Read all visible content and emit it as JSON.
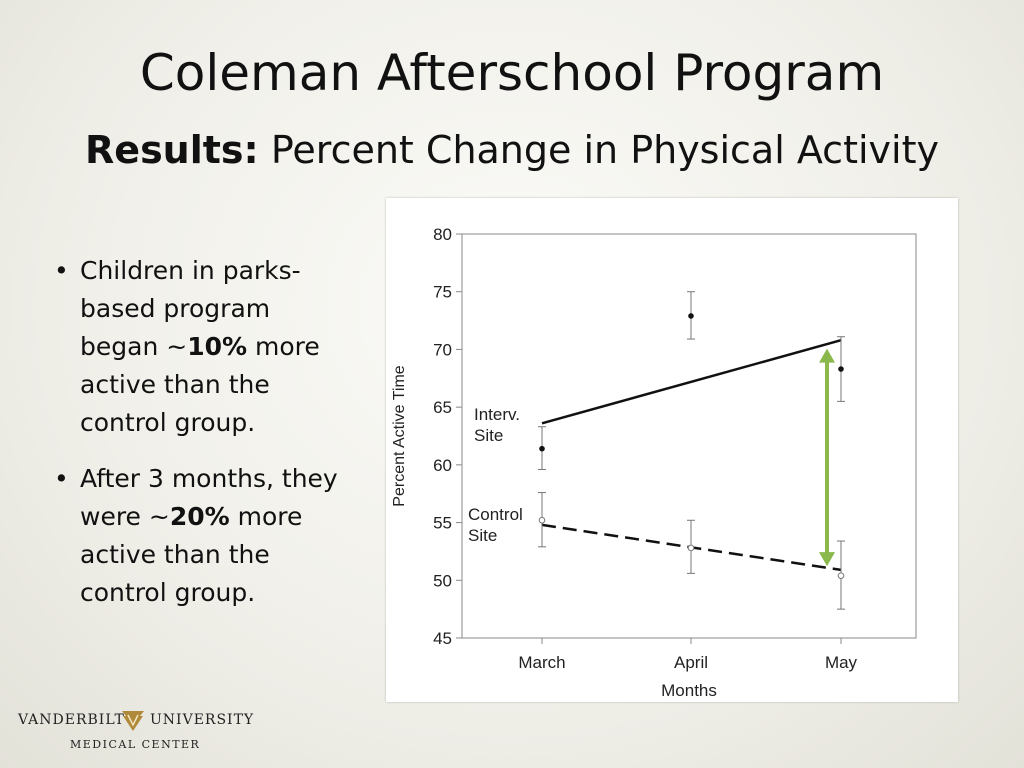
{
  "slide": {
    "title": "Coleman Afterschool Program",
    "subtitle_bold": "Results:",
    "subtitle_rest": "Percent Change in Physical Activity"
  },
  "bullets": [
    {
      "pre": "Children in parks-based program began ~",
      "bold": "10%",
      "post": " more active than the control group."
    },
    {
      "pre": "After 3 months, they were ~",
      "bold": "20%",
      "post": " more active than the control group."
    }
  ],
  "logo": {
    "word1": "VANDERBILT",
    "word2": "UNIVERSITY",
    "subline": "MEDICAL CENTER"
  },
  "chart_data": {
    "type": "line",
    "xlabel": "Months",
    "ylabel": "Percent Active Time",
    "categories": [
      "March",
      "April",
      "May"
    ],
    "ylim": [
      45,
      80
    ],
    "yticks": [
      45,
      50,
      55,
      60,
      65,
      70,
      75,
      80
    ],
    "grid": false,
    "series": [
      {
        "name": "Interv. Site",
        "label_lines": [
          "Interv.",
          "Site"
        ],
        "points": [
          61.4,
          72.9,
          68.3
        ],
        "error_low": [
          59.6,
          70.9,
          65.5
        ],
        "error_high": [
          63.3,
          75.0,
          71.1
        ],
        "trend": [
          63.6,
          null,
          70.8
        ],
        "trend_style": "solid",
        "marker": "filled"
      },
      {
        "name": "Control Site",
        "label_lines": [
          "Control",
          "Site"
        ],
        "points": [
          55.2,
          52.8,
          50.4
        ],
        "error_low": [
          52.9,
          50.6,
          47.5
        ],
        "error_high": [
          57.6,
          55.2,
          53.4
        ],
        "trend": [
          54.8,
          null,
          50.9
        ],
        "trend_style": "dashed",
        "marker": "open"
      }
    ],
    "annotation": {
      "type": "double-arrow",
      "category": "May",
      "from": 69.9,
      "to": 51.4,
      "color": "#8ab84a"
    }
  }
}
